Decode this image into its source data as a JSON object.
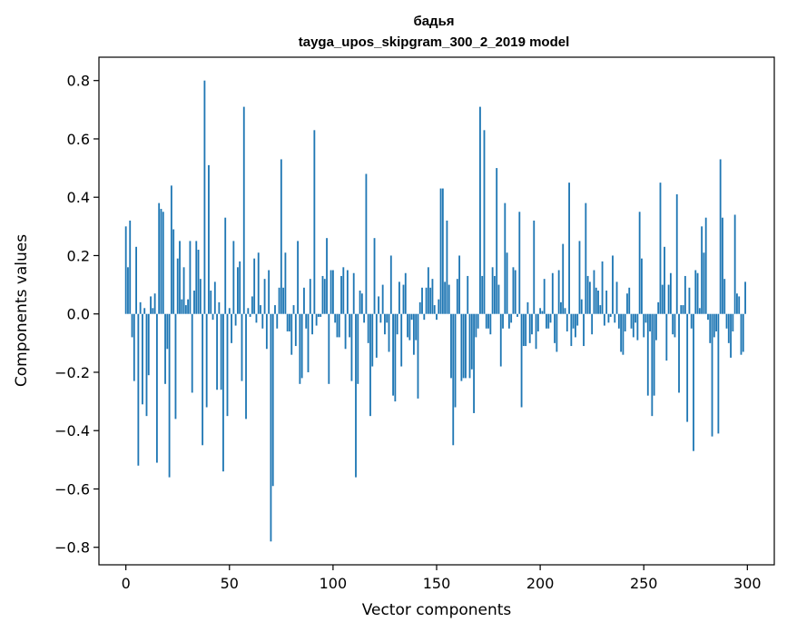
{
  "chart_data": {
    "type": "bar",
    "title": "бадья",
    "subtitle": "tayga_upos_skipgram_300_2_2019 model",
    "xlabel": "Vector components",
    "ylabel": "Components values",
    "xlim": [
      -13,
      313
    ],
    "ylim": [
      -0.86,
      0.88
    ],
    "xticks": [
      0,
      50,
      100,
      150,
      200,
      250,
      300
    ],
    "xtick_labels": [
      "0",
      "50",
      "100",
      "150",
      "200",
      "250",
      "300"
    ],
    "yticks": [
      0.8,
      0.6,
      0.4,
      0.2,
      0.0,
      -0.2,
      -0.4,
      -0.6,
      -0.8
    ],
    "ytick_labels": [
      "0.8",
      "0.6",
      "0.4",
      "0.2",
      "0.0",
      "−0.2",
      "−0.4",
      "−0.6",
      "−0.8"
    ],
    "bar_width": 0.8,
    "color": "#1f77b4",
    "values": [
      0.3,
      0.16,
      0.32,
      -0.08,
      -0.23,
      0.23,
      -0.52,
      0.04,
      -0.31,
      0.02,
      -0.35,
      -0.21,
      0.06,
      0.02,
      0.07,
      -0.51,
      0.38,
      0.36,
      0.35,
      -0.24,
      -0.12,
      -0.56,
      0.44,
      0.29,
      -0.36,
      0.19,
      0.25,
      0.05,
      0.16,
      0.03,
      0.05,
      0.25,
      -0.27,
      0.08,
      0.25,
      0.22,
      0.12,
      -0.45,
      0.8,
      -0.32,
      0.51,
      0.08,
      -0.02,
      0.11,
      -0.26,
      0.04,
      -0.26,
      -0.54,
      0.33,
      -0.35,
      0.02,
      -0.1,
      0.25,
      -0.04,
      0.16,
      0.18,
      -0.23,
      0.71,
      -0.36,
      0.02,
      -0.01,
      0.06,
      0.19,
      -0.03,
      0.21,
      0.03,
      -0.05,
      0.12,
      -0.12,
      0.15,
      -0.78,
      -0.59,
      0.03,
      -0.05,
      0.09,
      0.53,
      0.09,
      0.21,
      -0.06,
      -0.06,
      -0.14,
      0.03,
      -0.11,
      0.25,
      -0.24,
      -0.22,
      0.09,
      -0.05,
      -0.2,
      0.12,
      -0.07,
      0.63,
      -0.04,
      -0.01,
      -0.01,
      0.13,
      0.12,
      0.26,
      -0.24,
      0.15,
      0.15,
      -0.03,
      -0.08,
      -0.08,
      0.13,
      0.16,
      -0.12,
      0.15,
      -0.08,
      -0.23,
      0.14,
      -0.56,
      -0.24,
      0.08,
      0.07,
      -0.03,
      0.48,
      -0.1,
      -0.35,
      -0.18,
      0.26,
      -0.15,
      0.06,
      -0.03,
      0.1,
      -0.07,
      -0.03,
      -0.13,
      0.2,
      -0.28,
      -0.3,
      -0.07,
      0.11,
      -0.18,
      0.1,
      0.14,
      -0.08,
      -0.09,
      -0.02,
      -0.14,
      -0.09,
      -0.29,
      0.04,
      0.09,
      -0.02,
      0.09,
      0.16,
      0.09,
      0.12,
      0.03,
      -0.02,
      0.05,
      0.43,
      0.43,
      0.11,
      0.32,
      0.1,
      -0.22,
      -0.45,
      -0.32,
      0.12,
      0.2,
      -0.23,
      -0.22,
      -0.22,
      0.13,
      -0.22,
      -0.19,
      -0.34,
      -0.08,
      -0.05,
      0.71,
      0.13,
      0.63,
      -0.05,
      -0.05,
      -0.07,
      0.16,
      0.13,
      0.5,
      0.1,
      -0.18,
      -0.05,
      0.38,
      0.21,
      -0.05,
      -0.03,
      0.16,
      0.15,
      -0.01,
      0.35,
      -0.32,
      -0.11,
      -0.11,
      0.04,
      -0.1,
      -0.07,
      0.32,
      -0.12,
      -0.06,
      0.02,
      0.01,
      0.12,
      -0.05,
      -0.05,
      -0.03,
      0.14,
      -0.1,
      -0.13,
      0.15,
      0.04,
      0.24,
      0.02,
      -0.06,
      0.45,
      -0.11,
      -0.05,
      -0.08,
      -0.04,
      0.25,
      0.05,
      -0.11,
      0.38,
      0.13,
      0.11,
      -0.07,
      0.15,
      0.09,
      0.08,
      0.03,
      0.18,
      -0.04,
      0.08,
      -0.03,
      -0.01,
      0.2,
      -0.03,
      0.11,
      -0.05,
      -0.13,
      -0.14,
      -0.06,
      0.07,
      0.09,
      -0.05,
      -0.08,
      -0.03,
      -0.09,
      0.35,
      0.19,
      -0.08,
      -0.03,
      -0.28,
      -0.06,
      -0.35,
      -0.28,
      -0.09,
      0.04,
      0.45,
      0.1,
      0.23,
      -0.16,
      0.1,
      0.14,
      -0.07,
      -0.08,
      0.41,
      -0.27,
      0.03,
      0.03,
      0.13,
      -0.37,
      0.09,
      -0.05,
      -0.47,
      0.15,
      0.14,
      0.02,
      0.3,
      0.21,
      0.33,
      -0.02,
      -0.1,
      -0.42,
      -0.08,
      -0.06,
      -0.41,
      0.53,
      0.33,
      0.12,
      -0.05,
      -0.1,
      -0.15,
      -0.06,
      0.34,
      0.07,
      0.06,
      -0.14,
      -0.13,
      0.11
    ]
  }
}
